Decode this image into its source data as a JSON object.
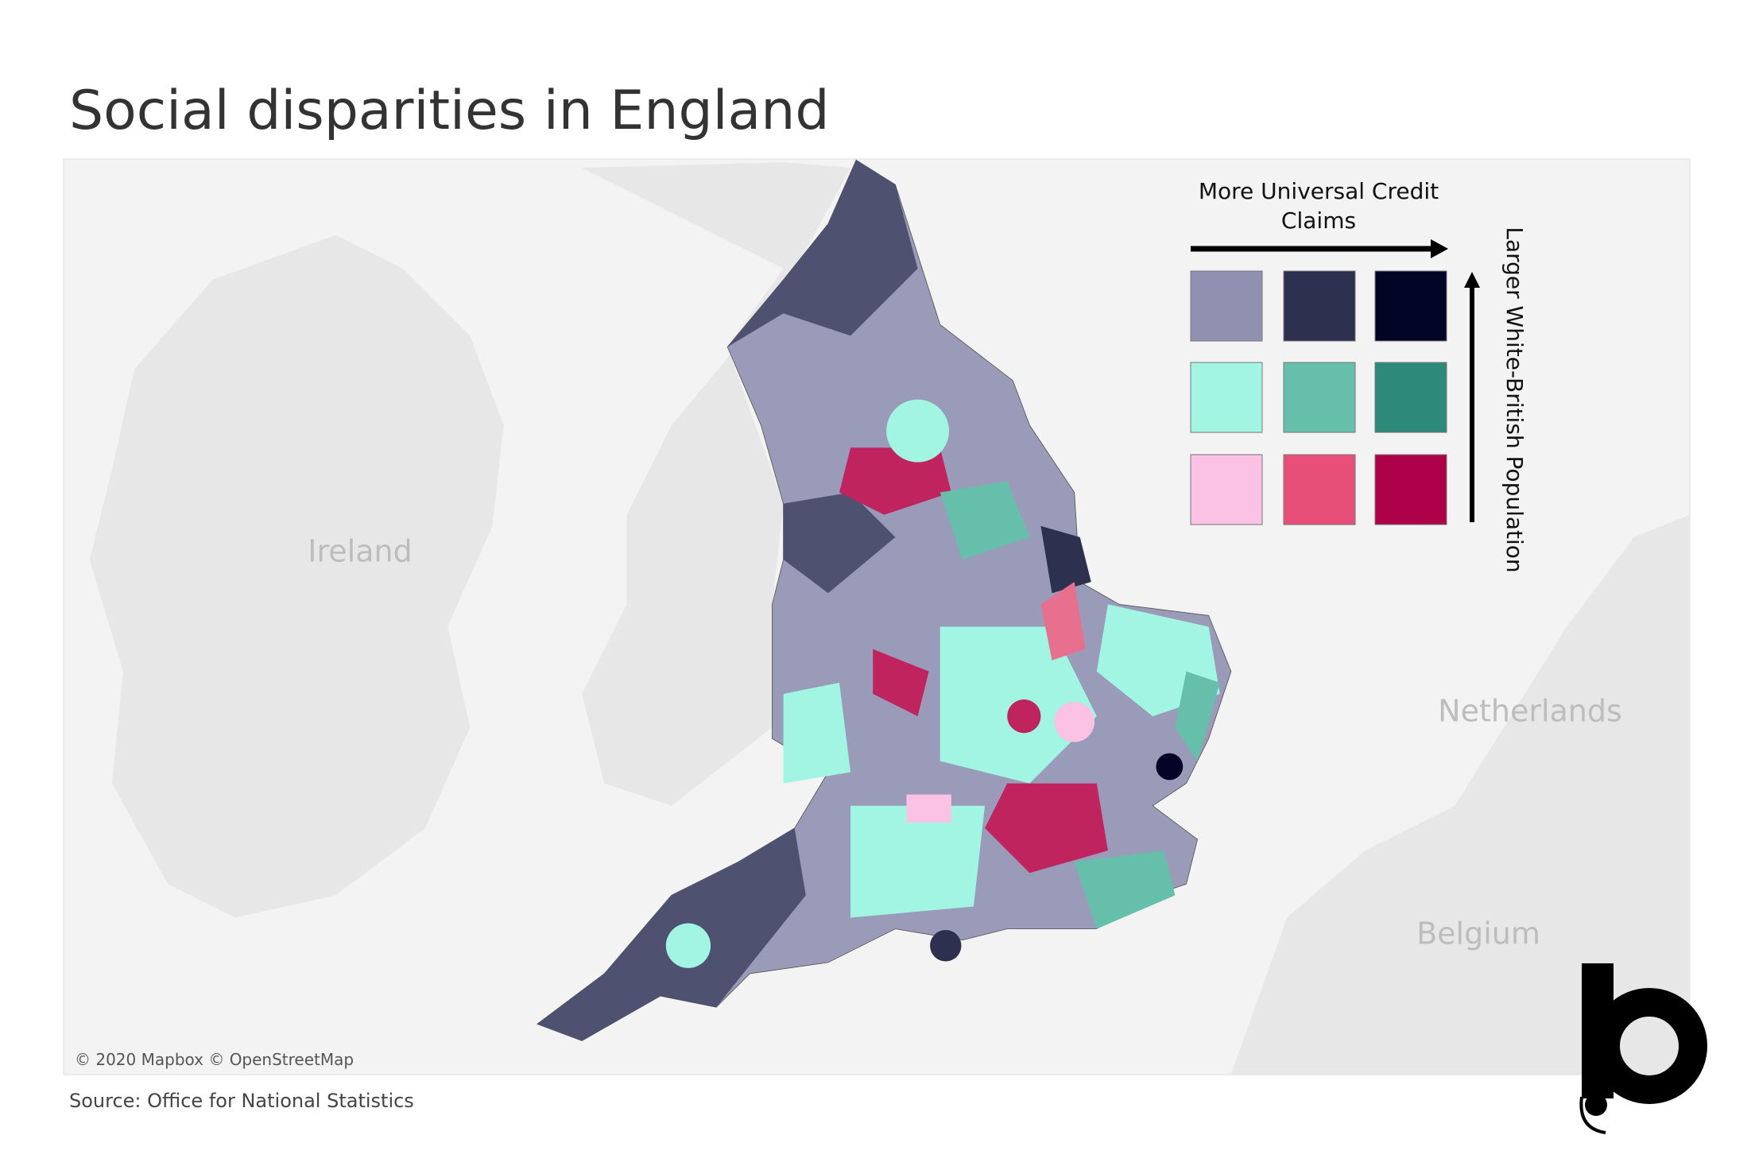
{
  "title": "Social disparities in England",
  "map": {
    "labels": [
      "Ireland",
      "Netherlands",
      "Belgium"
    ],
    "attribution": "© 2020 Mapbox © OpenStreetMap"
  },
  "legend": {
    "x_label": "More Universal Credit Claims",
    "y_label": "Larger White-British Population",
    "colors": [
      [
        "#9091b0",
        "#2e304f",
        "#020526"
      ],
      [
        "#a3f5e3",
        "#66bfaa",
        "#2e8a78"
      ],
      [
        "#fcc2e4",
        "#e84f78",
        "#ad0049"
      ]
    ]
  },
  "source": "Source: Office for National Statistics"
}
